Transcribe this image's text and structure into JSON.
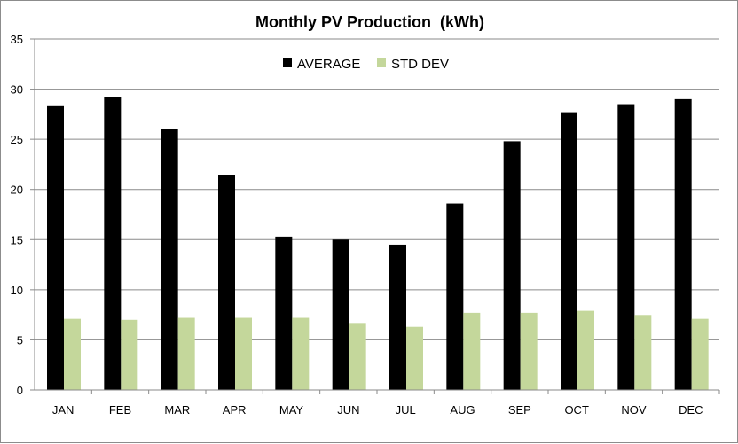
{
  "chart_data": {
    "type": "bar",
    "title": "Monthly PV Production  (kWh)",
    "xlabel": "",
    "ylabel": "",
    "categories": [
      "JAN",
      "FEB",
      "MAR",
      "APR",
      "MAY",
      "JUN",
      "JUL",
      "AUG",
      "SEP",
      "OCT",
      "NOV",
      "DEC"
    ],
    "series": [
      {
        "name": "AVERAGE",
        "color": "#000000",
        "values": [
          28.3,
          29.2,
          26.0,
          21.4,
          15.3,
          15.0,
          14.5,
          18.6,
          24.8,
          27.7,
          28.5,
          29.0
        ]
      },
      {
        "name": "STD DEV",
        "color": "#c4d79b",
        "values": [
          7.1,
          7.0,
          7.2,
          7.2,
          7.2,
          6.6,
          6.3,
          7.7,
          7.7,
          7.9,
          7.4,
          7.1
        ]
      }
    ],
    "ylim": [
      0,
      35
    ],
    "yticks": [
      "0",
      "5",
      "10",
      "15",
      "20",
      "25",
      "30",
      "35"
    ],
    "grid": true,
    "legend": "top-center"
  }
}
